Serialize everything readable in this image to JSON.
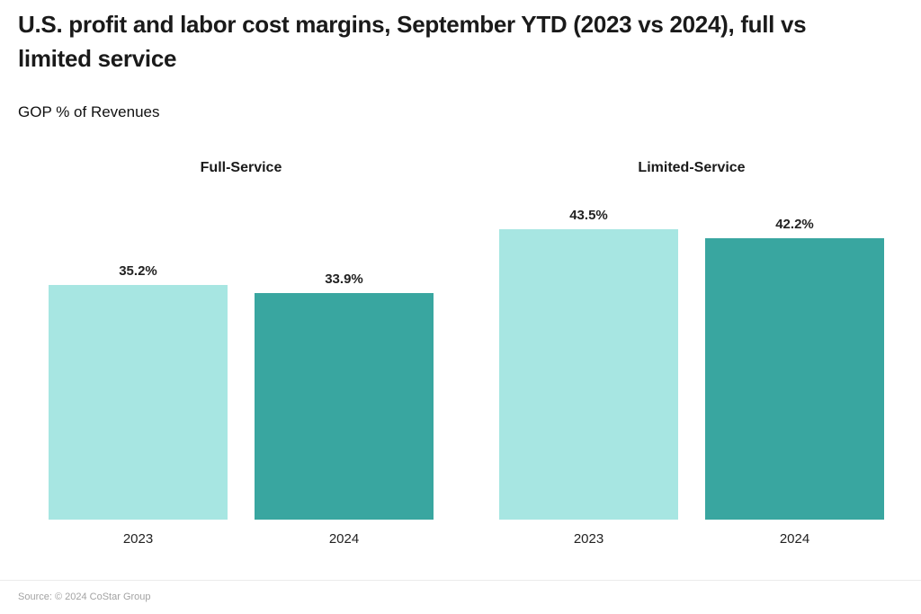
{
  "header": {
    "title": "U.S. profit and labor cost margins, September YTD (2023 vs 2024), full vs limited service",
    "title_lines": [
      "U.S. profit and labor cost margins, September YTD (2023 vs 2024), full vs",
      "limited service"
    ],
    "subtitle": "GOP % of Revenues"
  },
  "footer": {
    "source": "Source: © 2024 CoStar Group"
  },
  "colors": {
    "bar_2023": "#a7e6e2",
    "bar_2024": "#39a6a0",
    "title_text": "#1a1a1a",
    "value_label_text": "#222222",
    "source_text": "#a3a3a3"
  },
  "chart_data": {
    "type": "bar",
    "title": "U.S. profit and labor cost margins, September YTD (2023 vs 2024), full vs limited service",
    "subtitle": "GOP % of Revenues",
    "ylabel": "GOP % of Revenues",
    "ylim": [
      0,
      50
    ],
    "grid": false,
    "legend": "none",
    "panels": [
      {
        "title": "Full-Service",
        "categories": [
          "2023",
          "2024"
        ],
        "values": [
          35.2,
          33.9
        ],
        "labels": [
          "35.2%",
          "33.9%"
        ]
      },
      {
        "title": "Limited-Service",
        "categories": [
          "2023",
          "2024"
        ],
        "values": [
          43.5,
          42.2
        ],
        "labels": [
          "43.5%",
          "42.2%"
        ]
      }
    ],
    "bar_colors": [
      "#a7e6e2",
      "#39a6a0"
    ],
    "source": "Source: © 2024 CoStar Group"
  }
}
